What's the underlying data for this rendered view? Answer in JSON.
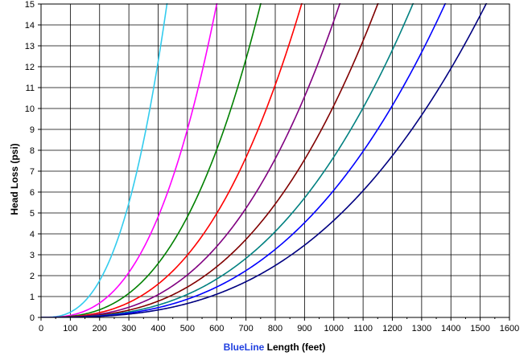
{
  "chart_data": {
    "type": "line",
    "title": "",
    "xlabel": {
      "brand": "BlueLine",
      "rest": " Length (feet)"
    },
    "ylabel": "Head Loss (psi)",
    "xlim": [
      0,
      1600
    ],
    "ylim": [
      0,
      15
    ],
    "x_ticks": [
      0,
      100,
      200,
      300,
      400,
      500,
      600,
      700,
      800,
      900,
      1000,
      1100,
      1200,
      1300,
      1400,
      1500,
      1600
    ],
    "y_ticks": [
      0,
      1,
      2,
      3,
      4,
      5,
      6,
      7,
      8,
      9,
      10,
      11,
      12,
      13,
      14,
      15
    ],
    "grid": true,
    "legend": "none",
    "curve_model": "y = 15 * (x / x_at_15) ^ exponent",
    "series": [
      {
        "x_at_15": 430,
        "exponent": 2.8,
        "color": "#33CCEE"
      },
      {
        "x_at_15": 600,
        "exponent": 2.8,
        "color": "#FF00FF"
      },
      {
        "x_at_15": 750,
        "exponent": 2.8,
        "color": "#008000"
      },
      {
        "x_at_15": 890,
        "exponent": 2.8,
        "color": "#FF0000"
      },
      {
        "x_at_15": 1020,
        "exponent": 2.8,
        "color": "#800080"
      },
      {
        "x_at_15": 1150,
        "exponent": 2.8,
        "color": "#800000"
      },
      {
        "x_at_15": 1270,
        "exponent": 2.8,
        "color": "#008080"
      },
      {
        "x_at_15": 1380,
        "exponent": 2.8,
        "color": "#0000FF"
      },
      {
        "x_at_15": 1520,
        "exponent": 2.8,
        "color": "#000080"
      }
    ],
    "colors": {
      "brand": "#1F3FE0",
      "grid": "#000000",
      "axis": "#000000"
    }
  }
}
